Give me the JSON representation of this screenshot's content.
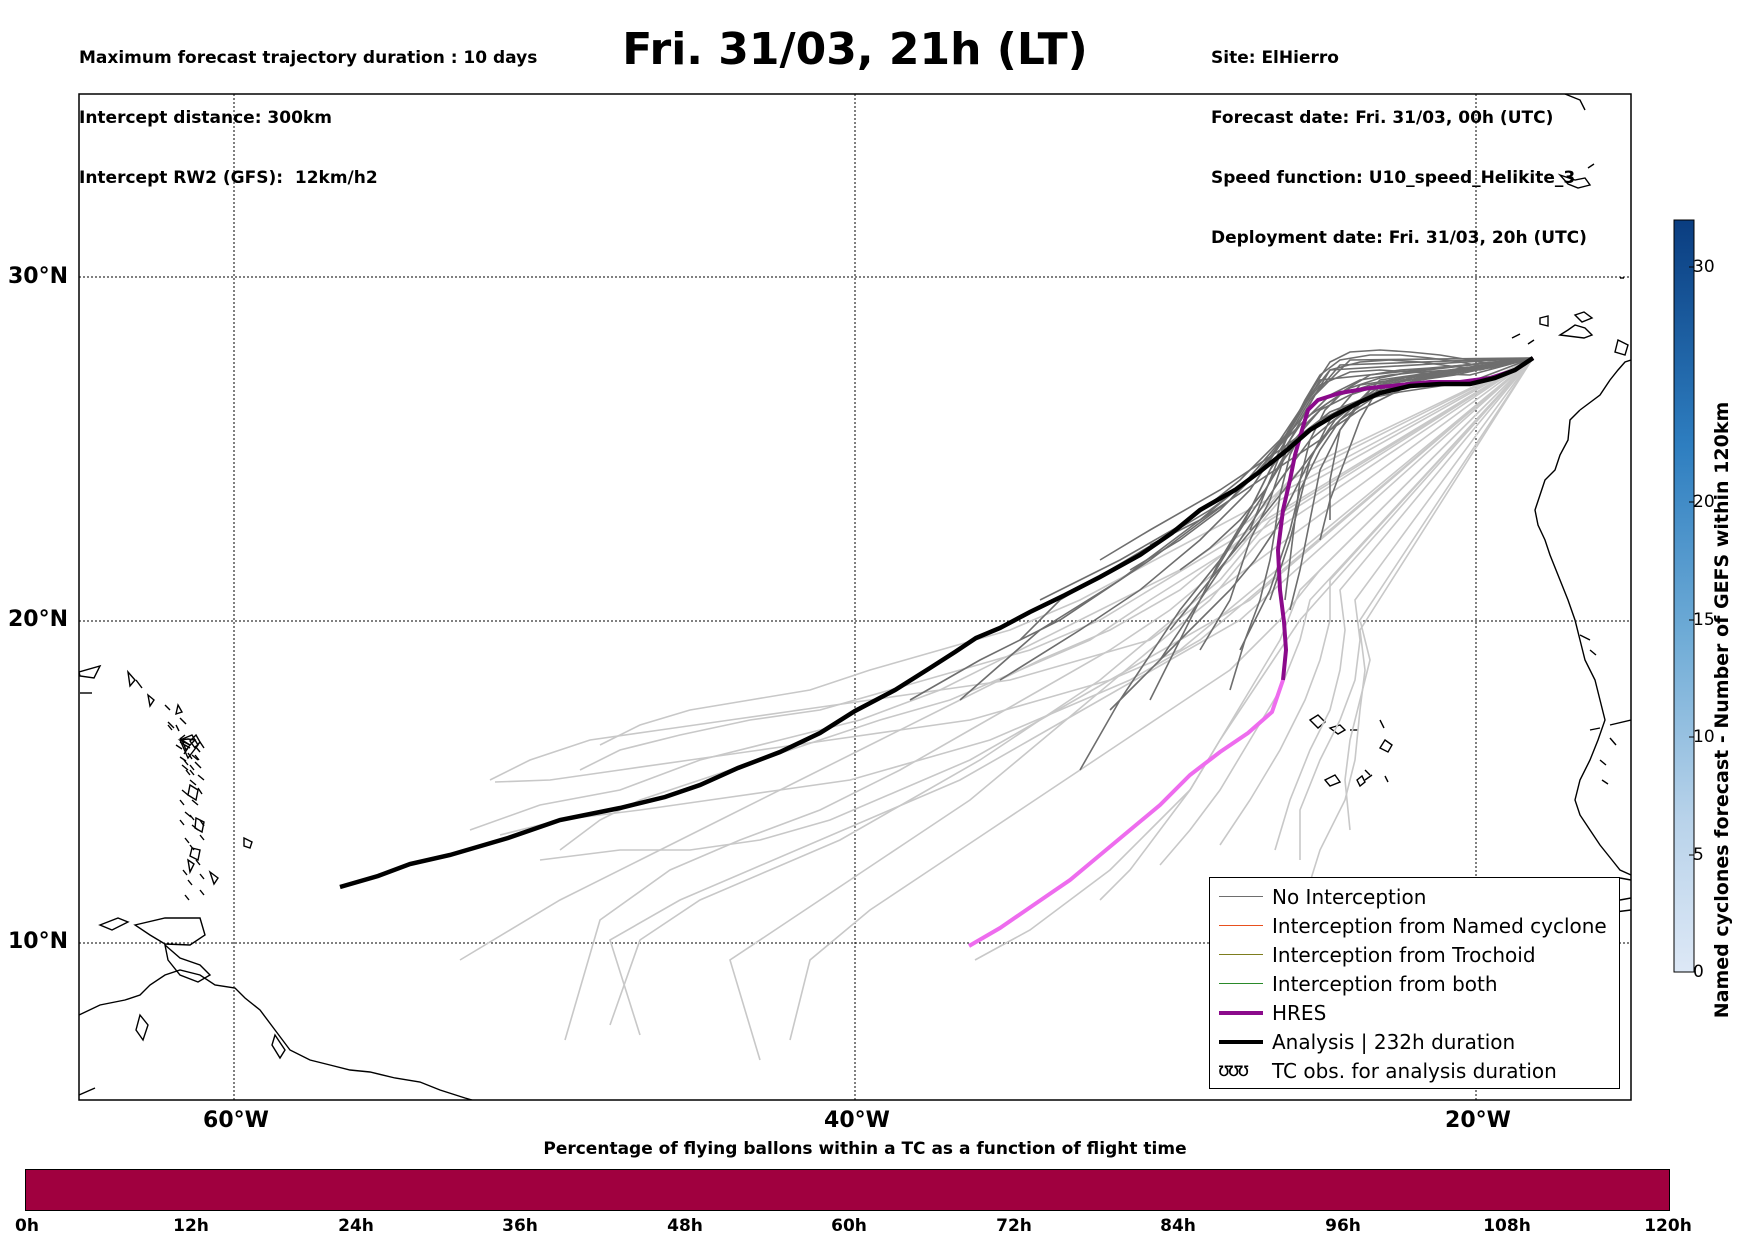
{
  "header": {
    "info_left": [
      "Maximum forecast trajectory duration : 10 days",
      "Intercept distance: 300km",
      "Intercept RW2 (GFS):  12km/h2"
    ],
    "title": "Fri. 31/03, 21h (LT)",
    "info_right": [
      "Site: ElHierro",
      "Forecast date: Fri. 31/03, 00h (UTC)",
      "Speed function: U10_speed_Helikite_3",
      "Deployment date: Fri. 31/03, 20h (UTC)"
    ]
  },
  "map": {
    "lat_labels": [
      "30°N",
      "20°N",
      "10°N"
    ],
    "lon_labels": [
      "60°W",
      "40°W",
      "20°W"
    ],
    "colors": {
      "no_interception": "#6e6e6e",
      "faded_member": "#c8c8c8",
      "named_cyclone": "#e8501e",
      "trochoid": "#7d7d1e",
      "both": "#2a8a2a",
      "hres": "#8b0a8b",
      "hres_tail": "#ee6cee",
      "analysis": "#000000"
    }
  },
  "legend": {
    "items": [
      {
        "label": "No Interception",
        "color": "#6e6e6e",
        "width": 1.5
      },
      {
        "label": "Interception from Named cyclone",
        "color": "#e8501e",
        "width": 1.5
      },
      {
        "label": "Interception from Trochoid",
        "color": "#7d7d1e",
        "width": 1.5
      },
      {
        "label": "Interception from both",
        "color": "#2a8a2a",
        "width": 1.5
      },
      {
        "label": "HRES",
        "color": "#8b0a8b",
        "width": 4
      },
      {
        "label": "Analysis | 232h duration",
        "color": "#000000",
        "width": 4
      }
    ],
    "tc_obs_icon": "ʊʊʊ",
    "tc_obs_label": "TC obs. for analysis duration"
  },
  "colorbar": {
    "title": "Named cyclones forecast - Number of GEFS within 120km",
    "ticks": [
      "0",
      "5",
      "10",
      "15",
      "20",
      "30"
    ],
    "range": [
      0,
      32
    ]
  },
  "bottom": {
    "title": "Percentage of flying ballons within a TC as a function of flight time",
    "time_labels": [
      "0h",
      "12h",
      "24h",
      "36h",
      "48h",
      "60h",
      "72h",
      "84h",
      "96h",
      "108h",
      "120h"
    ],
    "bar_color": "#a0003f"
  }
}
